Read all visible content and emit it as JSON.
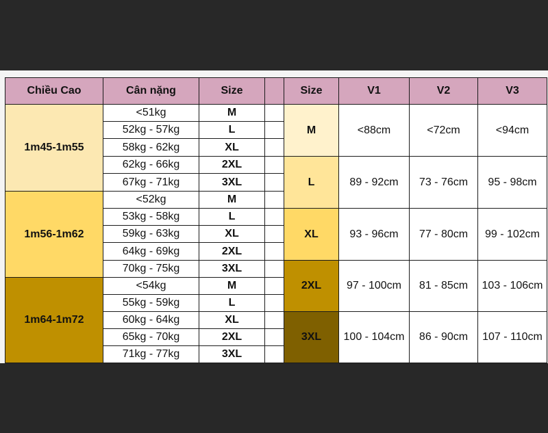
{
  "left_table": {
    "headers": [
      "Chiều Cao",
      "Cân nặng",
      "Size"
    ],
    "groups": [
      {
        "height": "1m45-1m55",
        "color": "#fce8b2",
        "rows": [
          {
            "weight": "<51kg",
            "size": "M"
          },
          {
            "weight": "52kg - 57kg",
            "size": "L"
          },
          {
            "weight": "58kg - 62kg",
            "size": "XL"
          },
          {
            "weight": "62kg - 66kg",
            "size": "2XL"
          },
          {
            "weight": "67kg - 71kg",
            "size": "3XL"
          }
        ]
      },
      {
        "height": "1m56-1m62",
        "color": "#ffd966",
        "rows": [
          {
            "weight": "<52kg",
            "size": "M"
          },
          {
            "weight": "53kg - 58kg",
            "size": "L"
          },
          {
            "weight": "59kg - 63kg",
            "size": "XL"
          },
          {
            "weight": "64kg - 69kg",
            "size": "2XL"
          },
          {
            "weight": "70kg - 75kg",
            "size": "3XL"
          }
        ]
      },
      {
        "height": "1m64-1m72",
        "color": "#bf9000",
        "rows": [
          {
            "weight": "<54kg",
            "size": "M"
          },
          {
            "weight": "55kg - 59kg",
            "size": "L"
          },
          {
            "weight": "60kg - 64kg",
            "size": "XL"
          },
          {
            "weight": "65kg - 70kg",
            "size": "2XL"
          },
          {
            "weight": "71kg - 77kg",
            "size": "3XL"
          }
        ]
      }
    ]
  },
  "right_table": {
    "headers": [
      "Size",
      "V1",
      "V2",
      "V3"
    ],
    "rows": [
      {
        "size": "M",
        "color": "#fff2cc",
        "v1": "<88cm",
        "v2": "<72cm",
        "v3": "<94cm"
      },
      {
        "size": "L",
        "color": "#ffe599",
        "v1": "89 - 92cm",
        "v2": "73 - 76cm",
        "v3": "95 - 98cm"
      },
      {
        "size": "XL",
        "color": "#ffd966",
        "v1": "93 - 96cm",
        "v2": "77 - 80cm",
        "v3": "99 - 102cm"
      },
      {
        "size": "2XL",
        "color": "#bf9000",
        "v1": "97 - 100cm",
        "v2": "81 - 85cm",
        "v3": "103 - 106cm"
      },
      {
        "size": "3XL",
        "color": "#7f6000",
        "v1": "100 - 104cm",
        "v2": "86 - 90cm",
        "v3": "107 - 110cm"
      }
    ]
  },
  "colors": {
    "header": "#d5a6bd",
    "background": "#282828",
    "sheet": "#f4f4f4"
  }
}
